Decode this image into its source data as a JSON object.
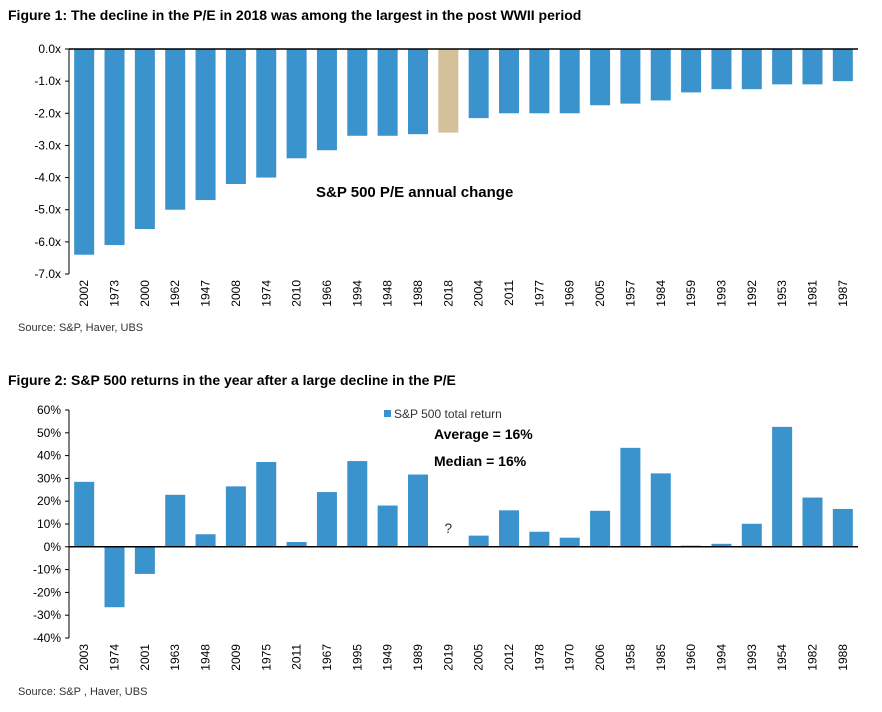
{
  "figures": {
    "figure1_title": "Figure 1: The decline in the P/E in 2018 was among the largest in the post WWII period",
    "figure1_source": "Source: S&P, Haver, UBS",
    "figure2_title": "Figure 2: S&P 500 returns in the year after a large decline in the P/E",
    "figure2_source": "Source: S&P , Haver, UBS"
  },
  "chart_data": [
    {
      "type": "bar",
      "title": "S&P 500 P/E  annual change",
      "categories": [
        "2002",
        "1973",
        "2000",
        "1962",
        "1947",
        "2008",
        "1974",
        "2010",
        "1966",
        "1994",
        "1948",
        "1988",
        "2018",
        "2004",
        "2011",
        "1977",
        "1969",
        "2005",
        "1957",
        "1984",
        "1959",
        "1993",
        "1992",
        "1953",
        "1981",
        "1987"
      ],
      "values": [
        -6.4,
        -6.1,
        -5.6,
        -5.0,
        -4.7,
        -4.2,
        -4.0,
        -3.4,
        -3.15,
        -2.7,
        -2.7,
        -2.65,
        -2.6,
        -2.15,
        -2.0,
        -2.0,
        -2.0,
        -1.75,
        -1.7,
        -1.6,
        -1.35,
        -1.25,
        -1.25,
        -1.1,
        -1.1,
        -1.0
      ],
      "highlight_category": "2018",
      "colors": {
        "bar": "#3a93cc",
        "highlight": "#d4c09a"
      },
      "yticks": [
        "0.0x",
        "-1.0x",
        "-2.0x",
        "-3.0x",
        "-4.0x",
        "-5.0x",
        "-6.0x",
        "-7.0x"
      ],
      "ylim": [
        -7,
        0
      ],
      "xlabel": "",
      "ylabel": ""
    },
    {
      "type": "bar",
      "title": "",
      "series_name": "S&P 500 total return",
      "categories": [
        "2003",
        "1974",
        "2001",
        "1963",
        "1948",
        "2009",
        "1975",
        "2011",
        "1967",
        "1995",
        "1949",
        "1989",
        "2019",
        "2005",
        "2012",
        "1978",
        "1970",
        "2006",
        "1958",
        "1985",
        "1960",
        "1994",
        "1993",
        "1954",
        "1982",
        "1988"
      ],
      "values": [
        28.5,
        -26.5,
        -11.9,
        22.8,
        5.5,
        26.5,
        37.2,
        2.1,
        24.0,
        37.6,
        18.1,
        31.7,
        null,
        4.9,
        16.0,
        6.6,
        4.0,
        15.8,
        43.4,
        32.2,
        0.5,
        1.3,
        10.1,
        52.6,
        21.6,
        16.6
      ],
      "unknown_label": "?",
      "annotations": [
        "Average = 16%",
        "Median = 16%"
      ],
      "yticks": [
        "60%",
        "50%",
        "40%",
        "30%",
        "20%",
        "10%",
        "0%",
        "-10%",
        "-20%",
        "-30%",
        "-40%"
      ],
      "ylim": [
        -40,
        60
      ],
      "colors": {
        "bar": "#3a93cc"
      },
      "xlabel": "",
      "ylabel": ""
    }
  ]
}
